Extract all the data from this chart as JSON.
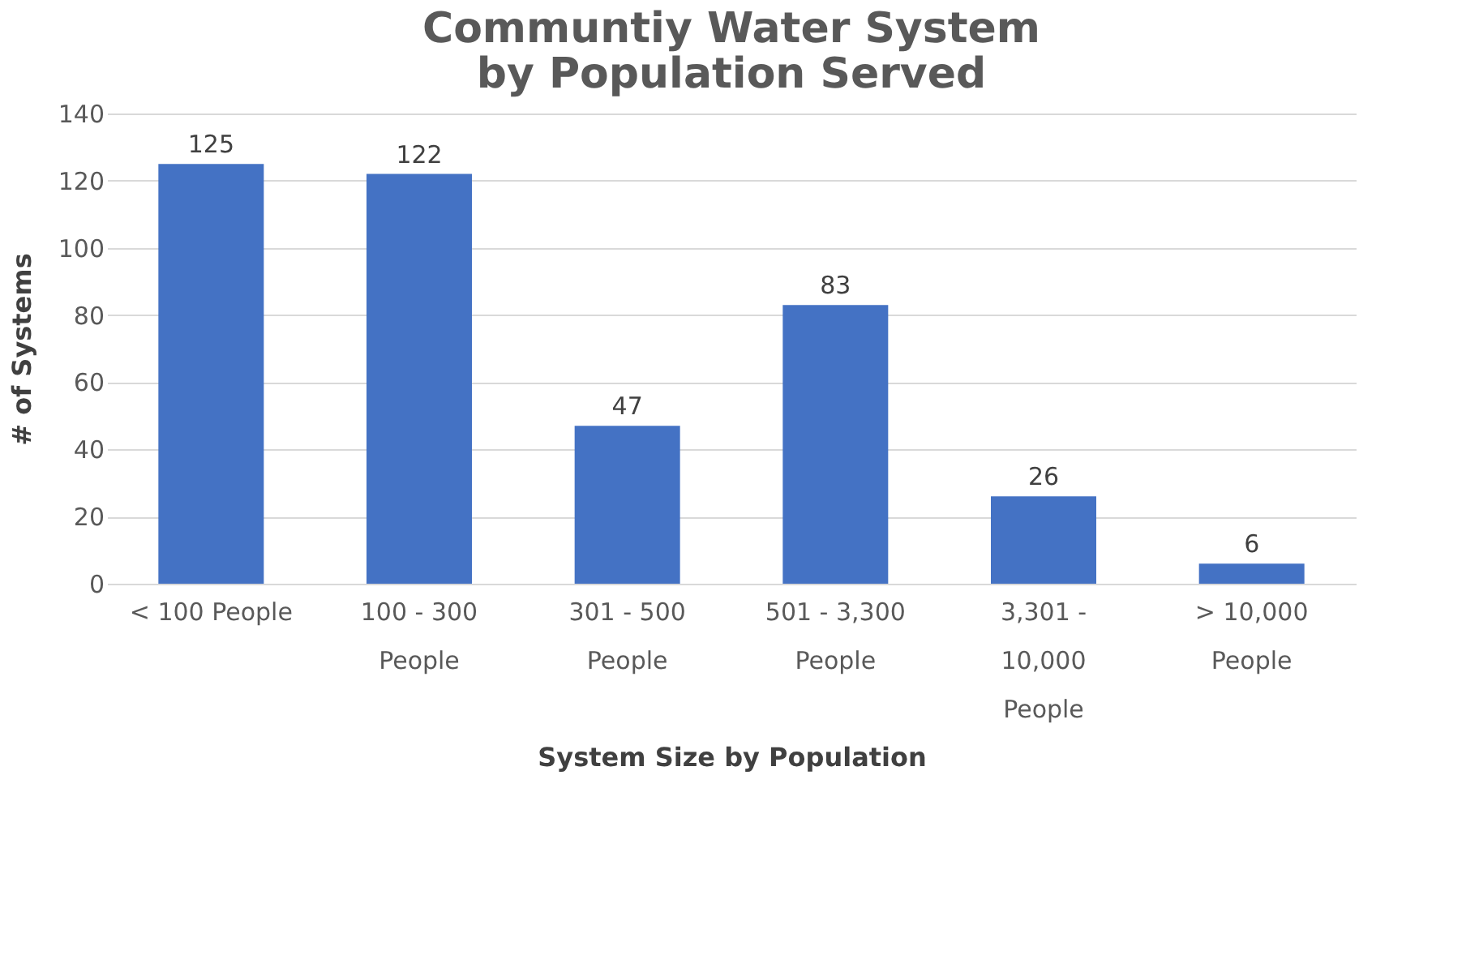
{
  "chart_data": {
    "type": "bar",
    "title": "Communtiy Water System\nby Population Served",
    "xlabel": "System Size by Population",
    "ylabel": "# of Systems",
    "categories": [
      "< 100 People",
      "100 - 300\nPeople",
      "301 - 500\nPeople",
      "501 - 3,300\nPeople",
      "3,301 -\n10,000\nPeople",
      "> 10,000\nPeople"
    ],
    "values": [
      125,
      122,
      47,
      83,
      26,
      6
    ],
    "color": "#4472c4",
    "ylim": [
      0,
      140
    ],
    "yticks": [
      0,
      20,
      40,
      60,
      80,
      100,
      120,
      140
    ],
    "grid": "y",
    "data_labels": true
  }
}
